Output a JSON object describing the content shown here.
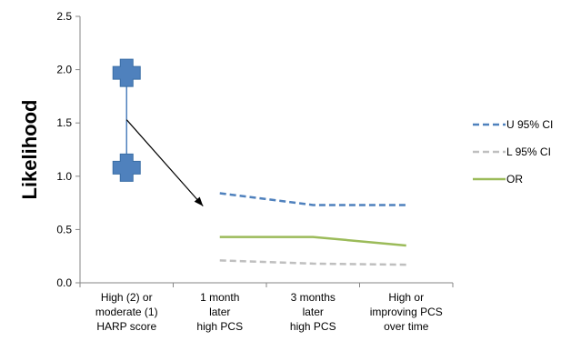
{
  "chart_data": {
    "type": "line",
    "title": "",
    "xlabel": "",
    "ylabel": "Likelihood",
    "ylim": [
      0,
      2.5
    ],
    "yticks": [
      "0.0",
      "0.5",
      "1.0",
      "1.5",
      "2.0",
      "2.5"
    ],
    "categories": [
      [
        "High (2) or",
        "moderate (1)",
        "HARP score"
      ],
      [
        "1 month",
        "later",
        "high PCS"
      ],
      [
        "3 months",
        "later",
        "high PCS"
      ],
      [
        "High or",
        "improving PCS",
        "over time"
      ]
    ],
    "series": [
      {
        "name": "U 95% CI",
        "color": "#4f81bd",
        "style": "dashed",
        "x": [
          1,
          2,
          3
        ],
        "values": [
          0.84,
          0.73,
          0.73
        ]
      },
      {
        "name": "L 95% CI",
        "color": "#bfbfbf",
        "style": "dashed",
        "x": [
          1,
          2,
          3
        ],
        "values": [
          0.21,
          0.18,
          0.17
        ]
      },
      {
        "name": "OR",
        "color": "#9bbb59",
        "style": "solid",
        "x": [
          1,
          2,
          3
        ],
        "values": [
          0.43,
          0.43,
          0.35
        ]
      }
    ],
    "harp_interval": {
      "x": 0,
      "upper": 1.97,
      "lower": 1.08,
      "color": "#4f81bd"
    },
    "annotation_arrow": {
      "from": [
        0,
        1.53
      ],
      "to": [
        0.82,
        0.72
      ]
    },
    "legend_position": "right",
    "grid": false
  }
}
